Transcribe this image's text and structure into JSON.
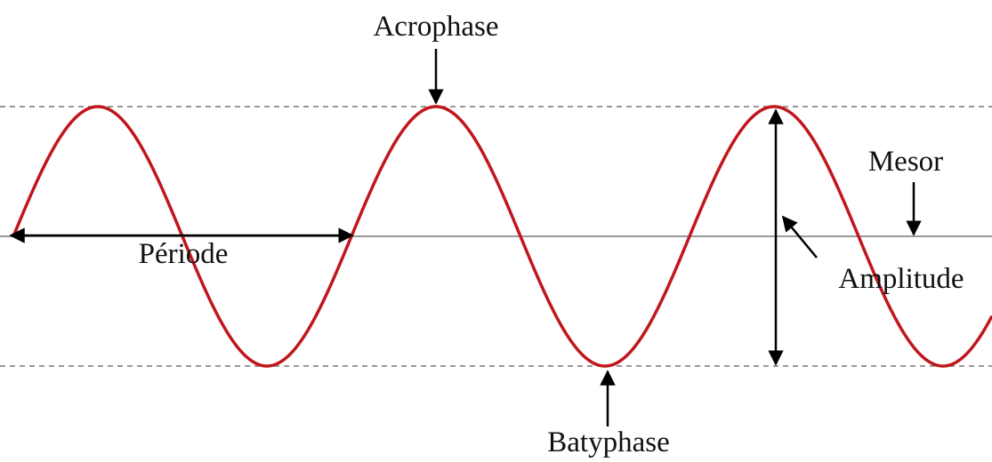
{
  "labels": {
    "acrophase": "Acrophase",
    "mesor": "Mesor",
    "periode": "Période",
    "amplitude": "Amplitude",
    "batyphase": "Batyphase"
  }
}
